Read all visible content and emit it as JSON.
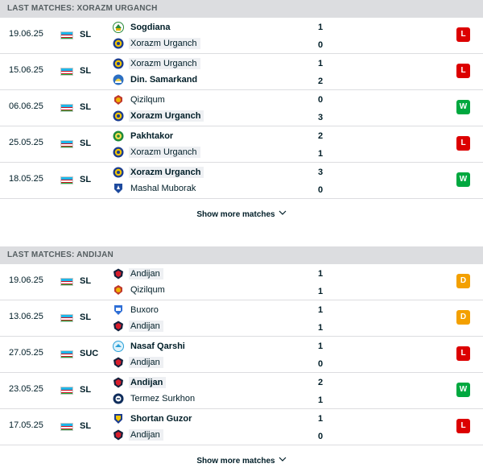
{
  "sections": [
    {
      "title": "LAST MATCHES: XORAZM URGANCH",
      "show_more": "Show more matches",
      "matches": [
        {
          "date": "19.06.25",
          "comp": "SL",
          "home": "Sogdiana",
          "away": "Xorazm Urganch",
          "home_score": "1",
          "away_score": "0",
          "result": "L",
          "result_color": "#dc0000",
          "home_logo": "sogdiana",
          "away_logo": "xorazm",
          "highlight": "away",
          "winner": "home"
        },
        {
          "date": "15.06.25",
          "comp": "SL",
          "home": "Xorazm Urganch",
          "away": "Din. Samarkand",
          "home_score": "1",
          "away_score": "2",
          "result": "L",
          "result_color": "#dc0000",
          "home_logo": "xorazm",
          "away_logo": "samarkand",
          "highlight": "home",
          "winner": "away"
        },
        {
          "date": "06.06.25",
          "comp": "SL",
          "home": "Qizilqum",
          "away": "Xorazm Urganch",
          "home_score": "0",
          "away_score": "3",
          "result": "W",
          "result_color": "#00a83f",
          "home_logo": "qizilqum",
          "away_logo": "xorazm",
          "highlight": "away",
          "winner": "away"
        },
        {
          "date": "25.05.25",
          "comp": "SL",
          "home": "Pakhtakor",
          "away": "Xorazm Urganch",
          "home_score": "2",
          "away_score": "1",
          "result": "L",
          "result_color": "#dc0000",
          "home_logo": "pakhtakor",
          "away_logo": "xorazm",
          "highlight": "away",
          "winner": "home"
        },
        {
          "date": "18.05.25",
          "comp": "SL",
          "home": "Xorazm Urganch",
          "away": "Mashal Muborak",
          "home_score": "3",
          "away_score": "0",
          "result": "W",
          "result_color": "#00a83f",
          "home_logo": "xorazm",
          "away_logo": "mashal",
          "highlight": "home",
          "winner": "home"
        }
      ]
    },
    {
      "title": "LAST MATCHES: ANDIJAN",
      "show_more": "Show more matches",
      "matches": [
        {
          "date": "19.06.25",
          "comp": "SL",
          "home": "Andijan",
          "away": "Qizilqum",
          "home_score": "1",
          "away_score": "1",
          "result": "D",
          "result_color": "#f3a000",
          "home_logo": "andijan",
          "away_logo": "qizilqum",
          "highlight": "home",
          "winner": ""
        },
        {
          "date": "13.06.25",
          "comp": "SL",
          "home": "Buxoro",
          "away": "Andijan",
          "home_score": "1",
          "away_score": "1",
          "result": "D",
          "result_color": "#f3a000",
          "home_logo": "buxoro",
          "away_logo": "andijan",
          "highlight": "away",
          "winner": ""
        },
        {
          "date": "27.05.25",
          "comp": "SUC",
          "home": "Nasaf Qarshi",
          "away": "Andijan",
          "home_score": "1",
          "away_score": "0",
          "result": "L",
          "result_color": "#dc0000",
          "home_logo": "nasaf",
          "away_logo": "andijan",
          "highlight": "away",
          "winner": "home"
        },
        {
          "date": "23.05.25",
          "comp": "SL",
          "home": "Andijan",
          "away": "Termez Surkhon",
          "home_score": "2",
          "away_score": "1",
          "result": "W",
          "result_color": "#00a83f",
          "home_logo": "andijan",
          "away_logo": "termez",
          "highlight": "home",
          "winner": "home"
        },
        {
          "date": "17.05.25",
          "comp": "SL",
          "home": "Shortan Guzor",
          "away": "Andijan",
          "home_score": "1",
          "away_score": "0",
          "result": "L",
          "result_color": "#dc0000",
          "home_logo": "shortan",
          "away_logo": "andijan",
          "highlight": "away",
          "winner": "home"
        }
      ]
    }
  ],
  "country_flag": "uzbekistan-flag-icon",
  "colors": {
    "win": "#00a83f",
    "loss": "#dc0000",
    "draw": "#f3a000",
    "header_bg": "#dcdde0"
  }
}
